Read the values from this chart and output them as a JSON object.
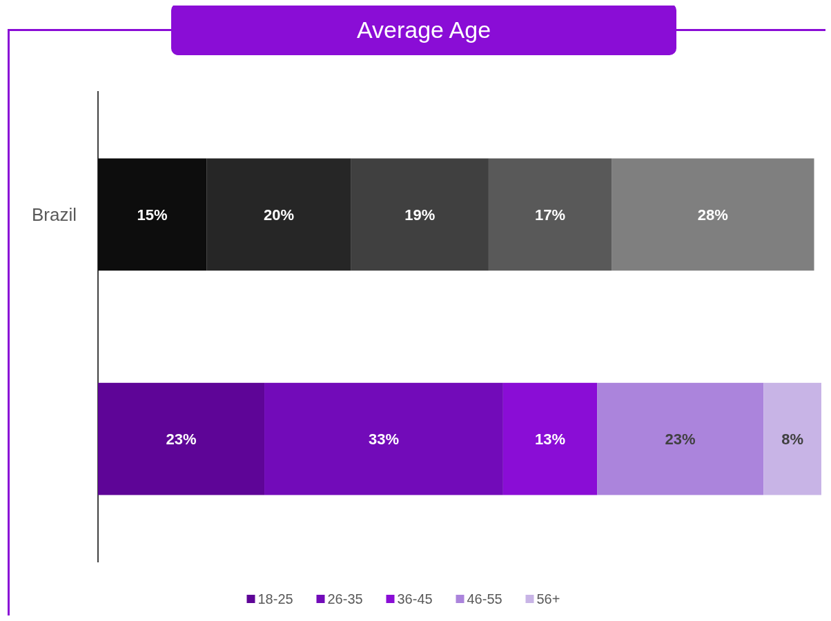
{
  "chart_data": {
    "type": "bar",
    "title": "Average Age",
    "orientation": "horizontal",
    "stacked": true,
    "categories": [
      "Brazil",
      null
    ],
    "xlim": [
      0,
      100
    ],
    "tick_labels": "y",
    "data_labels": true,
    "legend": "bottom",
    "series": [
      {
        "name": "18-25",
        "color": "#5e0597",
        "colors": [
          "#0d0d0d",
          "#5e0597"
        ],
        "values": [
          15,
          23
        ],
        "value_labels": [
          "15%",
          "23%"
        ]
      },
      {
        "name": "26-35",
        "color": "#720bb9",
        "colors": [
          "#262626",
          "#720bb9"
        ],
        "values": [
          20,
          33
        ],
        "value_labels": [
          "20%",
          "33%"
        ]
      },
      {
        "name": "36-45",
        "color": "#8a0dd6",
        "colors": [
          "#404040",
          "#8a0dd6"
        ],
        "values": [
          19,
          13
        ],
        "value_labels": [
          "19%",
          "13%"
        ]
      },
      {
        "name": "46-55",
        "color": "#ab84dc",
        "colors": [
          "#595959",
          "#ab84dc"
        ],
        "values": [
          17,
          23
        ],
        "value_labels": [
          "17%",
          "23%"
        ]
      },
      {
        "name": "56+",
        "color": "#c8b4e6",
        "colors": [
          "#7f7f7f",
          "#c8b4e6"
        ],
        "values": [
          28,
          8
        ],
        "value_labels": [
          "28%",
          "8%"
        ]
      }
    ]
  }
}
